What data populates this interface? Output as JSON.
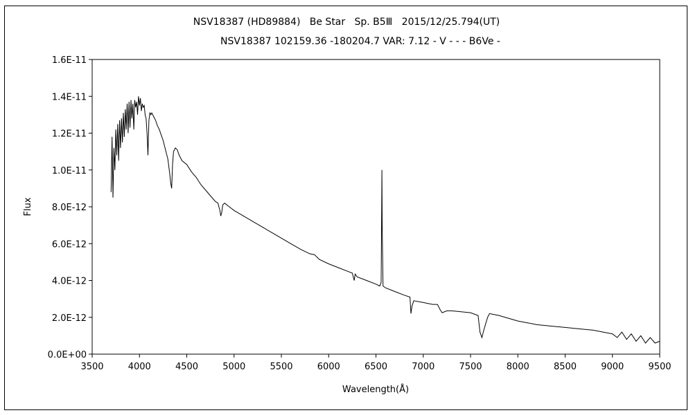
{
  "chart_data": {
    "type": "line",
    "title": "NSV18387 (HD89884)   Be Star   Sp. B5Ⅲ   2015/12/25.794(UT)",
    "subtitle": "NSV18387 102159.36 -180204.7 VAR: 7.12 - V - - - B6Ve -",
    "xlabel": "Wavelength(Å)",
    "ylabel": "Flux",
    "xlim": [
      3500,
      9500
    ],
    "ylim": [
      0,
      1.6e-11
    ],
    "xticks": [
      3500,
      4000,
      4500,
      5000,
      5500,
      6000,
      6500,
      7000,
      7500,
      8000,
      8500,
      9000,
      9500
    ],
    "xtick_labels": [
      "3500",
      "4000",
      "4500",
      "5000",
      "5500",
      "6000",
      "6500",
      "7000",
      "7500",
      "8000",
      "8500",
      "9000",
      "9500"
    ],
    "yticks": [
      0,
      2e-12,
      4e-12,
      6e-12,
      8e-12,
      1e-11,
      1.2e-11,
      1.4e-11,
      1.6e-11
    ],
    "ytick_labels": [
      "0.0E+00",
      "2.0E-12",
      "4.0E-12",
      "6.0E-12",
      "8.0E-12",
      "1.0E-11",
      "1.2E-11",
      "1.4E-11",
      "1.6E-11"
    ],
    "grid": false,
    "legend": "none",
    "line_color": "#000000",
    "series": [
      {
        "x": [
          3700,
          3710,
          3720,
          3730,
          3740,
          3750,
          3760,
          3770,
          3780,
          3790,
          3800,
          3810,
          3820,
          3830,
          3840,
          3850,
          3860,
          3870,
          3880,
          3890,
          3900,
          3910,
          3920,
          3930,
          3940,
          3950,
          3960,
          3970,
          3980,
          3990,
          4000,
          4010,
          4020,
          4030,
          4040,
          4050,
          4060,
          4070,
          4080,
          4090,
          4100,
          4110,
          4120,
          4130,
          4150,
          4170,
          4190,
          4210,
          4230,
          4250,
          4270,
          4300,
          4320,
          4330,
          4340,
          4350,
          4360,
          4380,
          4400,
          4420,
          4450,
          4500,
          4550,
          4600,
          4650,
          4700,
          4750,
          4800,
          4830,
          4850,
          4860,
          4870,
          4880,
          4900,
          4950,
          5000,
          5100,
          5200,
          5300,
          5400,
          5500,
          5600,
          5700,
          5800,
          5850,
          5900,
          6000,
          6100,
          6200,
          6250,
          6270,
          6280,
          6300,
          6400,
          6500,
          6540,
          6555,
          6560,
          6563,
          6566,
          6575,
          6600,
          6700,
          6800,
          6860,
          6870,
          6880,
          6900,
          7000,
          7100,
          7150,
          7180,
          7200,
          7250,
          7300,
          7400,
          7500,
          7580,
          7600,
          7620,
          7640,
          7680,
          7700,
          7750,
          7800,
          7900,
          8000,
          8100,
          8200,
          8300,
          8400,
          8500,
          8600,
          8700,
          8800,
          8850,
          8900,
          8950,
          9000,
          9050,
          9100,
          9150,
          9200,
          9250,
          9300,
          9350,
          9400,
          9450,
          9500
        ],
        "y": [
          8.8e-12,
          1.18e-11,
          8.5e-12,
          1.12e-11,
          1e-11,
          1.22e-11,
          1.08e-11,
          1.25e-11,
          1.05e-11,
          1.27e-11,
          1.12e-11,
          1.28e-11,
          1.15e-11,
          1.31e-11,
          1.18e-11,
          1.33e-11,
          1.22e-11,
          1.36e-11,
          1.2e-11,
          1.37e-11,
          1.23e-11,
          1.38e-11,
          1.28e-11,
          1.36e-11,
          1.22e-11,
          1.38e-11,
          1.34e-11,
          1.37e-11,
          1.3e-11,
          1.4e-11,
          1.35e-11,
          1.39e-11,
          1.32e-11,
          1.36e-11,
          1.34e-11,
          1.35e-11,
          1.3e-11,
          1.28e-11,
          1.2e-11,
          1.08e-11,
          1.27e-11,
          1.31e-11,
          1.3e-11,
          1.31e-11,
          1.29e-11,
          1.27e-11,
          1.24e-11,
          1.22e-11,
          1.19e-11,
          1.16e-11,
          1.12e-11,
          1.06e-11,
          9.8e-12,
          9.3e-12,
          9e-12,
          1.03e-11,
          1.1e-11,
          1.12e-11,
          1.11e-11,
          1.08e-11,
          1.05e-11,
          1.03e-11,
          9.9e-12,
          9.6e-12,
          9.2e-12,
          8.9e-12,
          8.6e-12,
          8.3e-12,
          8.2e-12,
          7.8e-12,
          7.5e-12,
          7.7e-12,
          8.1e-12,
          8.2e-12,
          8e-12,
          7.8e-12,
          7.5e-12,
          7.2e-12,
          6.9e-12,
          6.6e-12,
          6.3e-12,
          6e-12,
          5.7e-12,
          5.45e-12,
          5.4e-12,
          5.15e-12,
          4.9e-12,
          4.7e-12,
          4.5e-12,
          4.4e-12,
          4e-12,
          4.35e-12,
          4.2e-12,
          4e-12,
          3.8e-12,
          3.7e-12,
          3.9e-12,
          7.5e-12,
          1e-11,
          7e-12,
          3.7e-12,
          3.6e-12,
          3.4e-12,
          3.2e-12,
          3.1e-12,
          2.2e-12,
          2.6e-12,
          2.9e-12,
          2.8e-12,
          2.7e-12,
          2.7e-12,
          2.4e-12,
          2.25e-12,
          2.35e-12,
          2.35e-12,
          2.3e-12,
          2.25e-12,
          2.1e-12,
          1.2e-12,
          9e-13,
          1.3e-12,
          2e-12,
          2.2e-12,
          2.15e-12,
          2.1e-12,
          1.95e-12,
          1.8e-12,
          1.7e-12,
          1.6e-12,
          1.55e-12,
          1.5e-12,
          1.45e-12,
          1.4e-12,
          1.35e-12,
          1.3e-12,
          1.25e-12,
          1.2e-12,
          1.15e-12,
          1.1e-12,
          9e-13,
          1.2e-12,
          8e-13,
          1.1e-12,
          7e-13,
          1e-12,
          6e-13,
          9e-13,
          6e-13,
          7e-13
        ]
      }
    ]
  }
}
